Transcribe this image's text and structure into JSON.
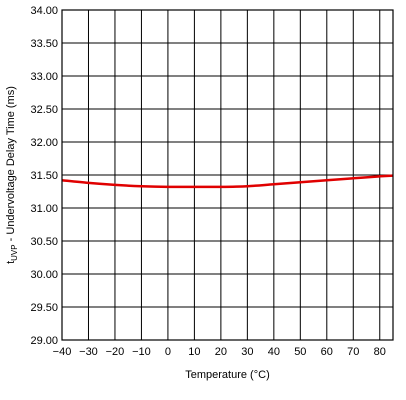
{
  "chart_data": {
    "type": "line",
    "xlabel": "Temperature (°C)",
    "ylabel_main": "t",
    "ylabel_sub": "UVP",
    "ylabel_rest": " - Undervoltage Delay Time (ms)",
    "xlim": [
      -40,
      85
    ],
    "ylim": [
      29.0,
      34.0
    ],
    "x_ticks": [
      -40,
      -30,
      -20,
      -10,
      0,
      10,
      20,
      30,
      40,
      50,
      60,
      70,
      80
    ],
    "x_tick_labels": [
      "−40",
      "−30",
      "−20",
      "−10",
      "0",
      "10",
      "20",
      "30",
      "40",
      "50",
      "60",
      "70",
      "80"
    ],
    "y_ticks": [
      29.0,
      29.5,
      30.0,
      30.5,
      31.0,
      31.5,
      32.0,
      32.5,
      33.0,
      33.5,
      34.0
    ],
    "y_tick_labels": [
      "29.00",
      "29.50",
      "30.00",
      "30.50",
      "31.00",
      "31.50",
      "32.00",
      "32.50",
      "33.00",
      "33.50",
      "34.00"
    ],
    "grid": true,
    "series": [
      {
        "color": "#e00000",
        "x": [
          -40,
          -30,
          -20,
          -10,
          0,
          10,
          20,
          30,
          40,
          50,
          60,
          70,
          80,
          85
        ],
        "y": [
          31.42,
          31.38,
          31.35,
          31.33,
          31.32,
          31.32,
          31.32,
          31.33,
          31.36,
          31.39,
          31.42,
          31.45,
          31.48,
          31.49
        ]
      }
    ]
  }
}
